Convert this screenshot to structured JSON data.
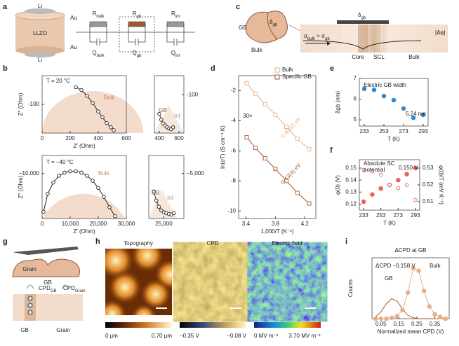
{
  "figure": {
    "panel_labels": [
      "a",
      "b",
      "c",
      "d",
      "e",
      "f",
      "g",
      "h",
      "i"
    ],
    "a": {
      "cell": [
        "Li",
        "Au",
        "LLZO",
        "Au",
        "Li"
      ],
      "circuit": [
        [
          "R",
          "bulk"
        ],
        [
          "R",
          "gb"
        ],
        [
          "R",
          "int"
        ],
        [
          "Q",
          "bulk"
        ],
        [
          "Q",
          "gb"
        ],
        [
          "Q",
          "int"
        ]
      ]
    },
    "c": {
      "gb": "GB",
      "bulk": "Bulk",
      "delta": [
        "δ",
        "gb"
      ],
      "delta2": [
        "δ",
        "gb"
      ],
      "sigma": [
        "σ",
        "bulk",
        " > σ",
        "gb"
      ],
      "core": "Core",
      "scl": "SCL",
      "bulk2": "Bulk",
      "phi": "|Δφ|"
    },
    "g": {
      "grain": "Grain",
      "gb": "GB",
      "cpd_gb": [
        "CPD",
        "GB"
      ],
      "cpd_grain": [
        "CPD",
        "Grain"
      ],
      "bottom_gb": "GB",
      "bottom_grain": "Grain"
    },
    "h": [
      {
        "title": "Topography",
        "min": "0 µm",
        "max": "0.70 µm"
      },
      {
        "title": "CPD",
        "min": "−0.35 V",
        "max": "−0.08 V"
      },
      {
        "title": "Electric field",
        "min": "0 MV m⁻¹",
        "max": "3.70 MV m⁻¹"
      }
    ]
  },
  "chart_data": [
    {
      "type": "line",
      "x": [
        240,
        280,
        320,
        360,
        400,
        430,
        460,
        490,
        510
      ],
      "values": [
        -160,
        -150,
        -130,
        -105,
        -75,
        -55,
        -35,
        -20,
        -10
      ],
      "xlim": [
        0,
        600
      ],
      "ylim": [
        0,
        -200
      ],
      "xticks": [
        0,
        200,
        400,
        600
      ],
      "yticks": [
        -100
      ],
      "xlabel": "Z′ (Ohm)",
      "ylabel": "Z′′ (Ohm)",
      "annotations": [
        "T = 20 °C",
        "Bulk"
      ],
      "color": "#222",
      "marker": "open-circle"
    },
    {
      "type": "line",
      "x": [
        400,
        420,
        440,
        460,
        480,
        500,
        520,
        540
      ],
      "values": [
        -50,
        -35,
        -25,
        -20,
        -15,
        -12,
        -10,
        -15
      ],
      "xlim": [
        350,
        650
      ],
      "ylim": [
        0,
        -150
      ],
      "xticks": [
        400,
        600
      ],
      "yticks": [
        -100
      ],
      "y_axis_side": "right",
      "annotations": [
        "GB",
        "Int"
      ],
      "color": "#222",
      "marker": "open-circle"
    },
    {
      "type": "line",
      "x": [
        500,
        2000,
        4000,
        6000,
        8000,
        10000,
        12000,
        14000,
        16000,
        18000,
        20000,
        22000,
        24000,
        26000
      ],
      "values": [
        -1500,
        -5500,
        -8000,
        -9500,
        -10200,
        -10500,
        -10500,
        -10200,
        -9500,
        -8400,
        -6800,
        -4800,
        -2500,
        -500
      ],
      "xlim": [
        0,
        30000
      ],
      "ylim": [
        0,
        -14000
      ],
      "xticks": [
        0,
        {
          "value": 10000,
          "label": "10,000"
        },
        {
          "value": 20000,
          "label": "20,000"
        },
        {
          "value": 30000,
          "label": "30,000"
        }
      ],
      "yticks": [
        {
          "value": -10000,
          "label": "−10,000"
        }
      ],
      "xlabel": "Z′ (Ohm)",
      "ylabel": "Z′′ (Ohm)",
      "annotations": [
        "T = −40 °C",
        "Bulk"
      ],
      "color": "#222",
      "marker": "open-circle"
    },
    {
      "type": "line",
      "x": [
        23000,
        23500,
        24000,
        24500,
        25000,
        25500,
        26000,
        26500,
        27000
      ],
      "values": [
        -3000,
        -2000,
        -1300,
        -900,
        -700,
        -600,
        -500,
        -450,
        -600
      ],
      "xlim": [
        22000,
        29000
      ],
      "ylim": [
        0,
        -7000
      ],
      "xticks": [
        {
          "value": 25000,
          "label": "25,000"
        }
      ],
      "yticks": [
        {
          "value": -5000,
          "label": "−5,000"
        }
      ],
      "y_axis_side": "right",
      "annotations": [
        "GB",
        "Int"
      ],
      "color": "#222",
      "marker": "open-circle"
    },
    {
      "type": "line",
      "x": [
        3.41,
        3.53,
        3.66,
        3.8,
        3.95,
        4.1,
        4.26
      ],
      "series": [
        {
          "name": "Bulk",
          "color": "#e3b089",
          "values": [
            -1.5,
            -2.2,
            -2.9,
            -3.6,
            -4.4,
            -5.2,
            -5.9
          ],
          "marker": "open-square"
        },
        {
          "name": "Specific GB",
          "color": "#a55a2e",
          "values": [
            -5.1,
            -5.8,
            -6.5,
            -7.2,
            -8.0,
            -8.8,
            -9.5
          ],
          "marker": "open-square"
        }
      ],
      "xlim": [
        3.3,
        4.35
      ],
      "ylim": [
        -10.5,
        -1
      ],
      "xticks": [
        3.4,
        3.8,
        4.2
      ],
      "yticks": [
        -2,
        -4,
        -6,
        -8,
        -10
      ],
      "xlabel": "1,000/T (K⁻¹)",
      "ylabel": "ln(σT) (S cm⁻¹ K)",
      "legend": "upper right",
      "annotations": [
        "30×",
        "0.48(2) eV",
        "0.43(4) eV"
      ]
    },
    {
      "type": "scatter",
      "x": [
        233,
        243,
        253,
        263,
        273,
        283,
        293
      ],
      "values": [
        6.5,
        6.45,
        6.15,
        5.95,
        5.55,
        5.1,
        5.24
      ],
      "color": "#2f8ad6",
      "marker": "filled-circle",
      "xlim": [
        228,
        298
      ],
      "ylim": [
        4.7,
        7
      ],
      "xticks": [
        233,
        253,
        273,
        293
      ],
      "yticks": [
        5,
        6,
        7
      ],
      "xlabel": "T (K)",
      "ylabel": "δgb (nm)",
      "annotations": [
        "Electric GB width",
        "5.24 nm"
      ]
    },
    {
      "type": "scatter",
      "x": [
        233,
        243,
        253,
        263,
        273,
        283,
        293
      ],
      "series": [
        {
          "name": "φ(0)",
          "color": "#e8635e",
          "values": [
            0.122,
            0.128,
            0.133,
            0.136,
            0.14,
            0.145,
            0.15
          ],
          "marker": "filled-circle"
        },
        {
          "name": "φ(0)/T",
          "color": "#e8635e",
          "values": [
            0.529,
            0.528,
            0.526,
            0.52,
            0.518,
            0.52,
            0.511
          ],
          "marker": "open-circle",
          "axis": "y2"
        }
      ],
      "xlim": [
        228,
        298
      ],
      "ylim": [
        0.115,
        0.157
      ],
      "y2lim": [
        0.505,
        0.535
      ],
      "xticks": [
        233,
        253,
        273,
        293
      ],
      "yticks": [
        0.12,
        0.13,
        0.14,
        0.15
      ],
      "y2ticks": [
        0.51,
        0.52,
        0.53
      ],
      "xlabel": "T (K)",
      "ylabel": "φ(0) (V)",
      "y2label": "φ(0)/T (mV K⁻¹)",
      "annotations": [
        "Absolute SC",
        "potential",
        "0.150 V"
      ]
    },
    {
      "type": "line",
      "title": "ΔCPD at GB",
      "x": [
        0.02,
        0.05,
        0.08,
        0.11,
        0.14,
        0.17,
        0.2,
        0.23,
        0.26,
        0.29,
        0.32,
        0.35,
        0.38,
        0.41
      ],
      "series": [
        {
          "name": "GB",
          "color": "#a55a2e",
          "values": [
            2,
            8,
            17,
            23,
            20,
            11,
            4,
            1,
            0,
            0,
            0,
            0,
            0,
            0
          ],
          "marker": "none"
        },
        {
          "name": "Bulk",
          "color": "#e3b089",
          "values": [
            0,
            0,
            0,
            1,
            3,
            10,
            30,
            58,
            55,
            32,
            14,
            5,
            2,
            0
          ],
          "marker": "filled-circle"
        }
      ],
      "xlim": [
        0,
        0.43
      ],
      "ylim": [
        0,
        70
      ],
      "xticks": [
        0.05,
        0.15,
        0.25,
        0.35
      ],
      "xlabel": "Normalized mean CPD (V)",
      "ylabel": "Counts",
      "annotations": [
        "ΔCPD −0.158 V"
      ]
    }
  ]
}
